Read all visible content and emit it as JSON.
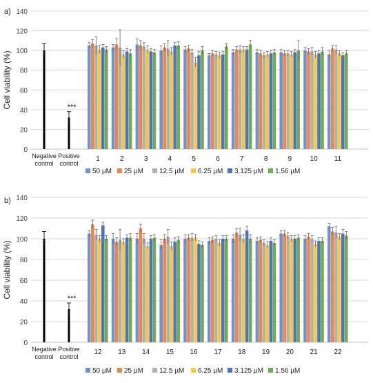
{
  "chart_data": [
    {
      "panel_label": "a)",
      "type": "bar",
      "ylabel": "Cell viability (%)",
      "ylim": [
        0,
        140
      ],
      "yticks": [
        0,
        20,
        40,
        60,
        80,
        100,
        120,
        140
      ],
      "grid": true,
      "legend_position": "bottom",
      "controls": {
        "categories": [
          "Negative control",
          "Positive control"
        ],
        "values": [
          100,
          32
        ],
        "errors": [
          7,
          6
        ],
        "annotation": "***"
      },
      "categories": [
        "1",
        "2",
        "3",
        "4",
        "5",
        "6",
        "7",
        "8",
        "9",
        "10",
        "11"
      ],
      "series": [
        {
          "name": "50 µM",
          "color": "#7393d0",
          "values": [
            105,
            103,
            106,
            100,
            101,
            95,
            98,
            98,
            98,
            100,
            96
          ],
          "errors": [
            3,
            3,
            6,
            5,
            3,
            2,
            3,
            3,
            3,
            3,
            4
          ]
        },
        {
          "name": "25 µM",
          "color": "#e8894a",
          "values": [
            107,
            106,
            105,
            103,
            102,
            97,
            101,
            97,
            97,
            99,
            102
          ],
          "errors": [
            4,
            6,
            5,
            4,
            3,
            3,
            3,
            3,
            3,
            3,
            3
          ]
        },
        {
          "name": "12.5 µM",
          "color": "#b0b0b0",
          "values": [
            105,
            103,
            104,
            102,
            98,
            96,
            101,
            95,
            97,
            99,
            101
          ],
          "errors": [
            9,
            18,
            4,
            8,
            3,
            3,
            4,
            3,
            3,
            4,
            4
          ]
        },
        {
          "name": "6.25 µM",
          "color": "#f4c93a",
          "values": [
            101,
            96,
            101,
            99,
            88,
            95,
            101,
            96,
            96,
            96,
            97
          ],
          "errors": [
            4,
            4,
            4,
            4,
            5,
            3,
            3,
            3,
            3,
            3,
            3
          ]
        },
        {
          "name": "3.125 µM",
          "color": "#4e73c4",
          "values": [
            103,
            99,
            99,
            105,
            95,
            96,
            101,
            97,
            98,
            97,
            95
          ],
          "errors": [
            3,
            3,
            3,
            3,
            4,
            3,
            3,
            3,
            3,
            3,
            3
          ]
        },
        {
          "name": "1.56 µM",
          "color": "#72ac4e",
          "values": [
            101,
            97,
            98,
            105,
            100,
            104,
            106,
            98,
            100,
            99,
            97
          ],
          "errors": [
            3,
            4,
            3,
            4,
            4,
            3,
            4,
            3,
            10,
            4,
            3
          ]
        }
      ]
    },
    {
      "panel_label": "b)",
      "type": "bar",
      "ylabel": "Cell viability (%)",
      "ylim": [
        0,
        140
      ],
      "yticks": [
        0,
        20,
        40,
        60,
        80,
        100,
        120,
        140
      ],
      "grid": true,
      "legend_position": "bottom",
      "controls": {
        "categories": [
          "Negative control",
          "Positive control"
        ],
        "values": [
          100,
          32
        ],
        "errors": [
          7,
          6
        ],
        "annotation": "***"
      },
      "categories": [
        "12",
        "13",
        "14",
        "15",
        "16",
        "17",
        "18",
        "19",
        "20",
        "21",
        "22"
      ],
      "series": [
        {
          "name": "50 µM",
          "color": "#7393d0",
          "values": [
            105,
            100,
            100,
            94,
            100,
            98,
            100,
            98,
            105,
            100,
            112
          ],
          "errors": [
            3,
            5,
            5,
            5,
            4,
            3,
            4,
            3,
            3,
            3,
            3
          ]
        },
        {
          "name": "25 µM",
          "color": "#e8894a",
          "values": [
            114,
            97,
            110,
            100,
            101,
            99,
            106,
            99,
            105,
            102,
            107
          ],
          "errors": [
            4,
            4,
            4,
            4,
            3,
            3,
            4,
            3,
            3,
            3,
            4
          ]
        },
        {
          "name": "12.5 µM",
          "color": "#b0b0b0",
          "values": [
            104,
            99,
            100,
            102,
            101,
            100,
            104,
            96,
            103,
            100,
            106
          ],
          "errors": [
            5,
            10,
            5,
            7,
            4,
            3,
            6,
            3,
            3,
            3,
            6
          ]
        },
        {
          "name": "6.25 µM",
          "color": "#f4c93a",
          "values": [
            100,
            97,
            93,
            93,
            101,
            96,
            100,
            94,
            100,
            95,
            102
          ],
          "errors": [
            3,
            3,
            3,
            4,
            3,
            3,
            4,
            3,
            3,
            3,
            3
          ]
        },
        {
          "name": "3.125 µM",
          "color": "#4e73c4",
          "values": [
            113,
            101,
            100,
            97,
            95,
            100,
            108,
            98,
            100,
            98,
            105
          ],
          "errors": [
            3,
            3,
            3,
            4,
            3,
            3,
            4,
            3,
            3,
            3,
            4
          ]
        },
        {
          "name": "1.56 µM",
          "color": "#72ac4e",
          "values": [
            100,
            101,
            101,
            99,
            94,
            100,
            100,
            96,
            101,
            98,
            103
          ],
          "errors": [
            3,
            4,
            3,
            3,
            3,
            3,
            4,
            3,
            3,
            3,
            4
          ]
        }
      ]
    }
  ]
}
